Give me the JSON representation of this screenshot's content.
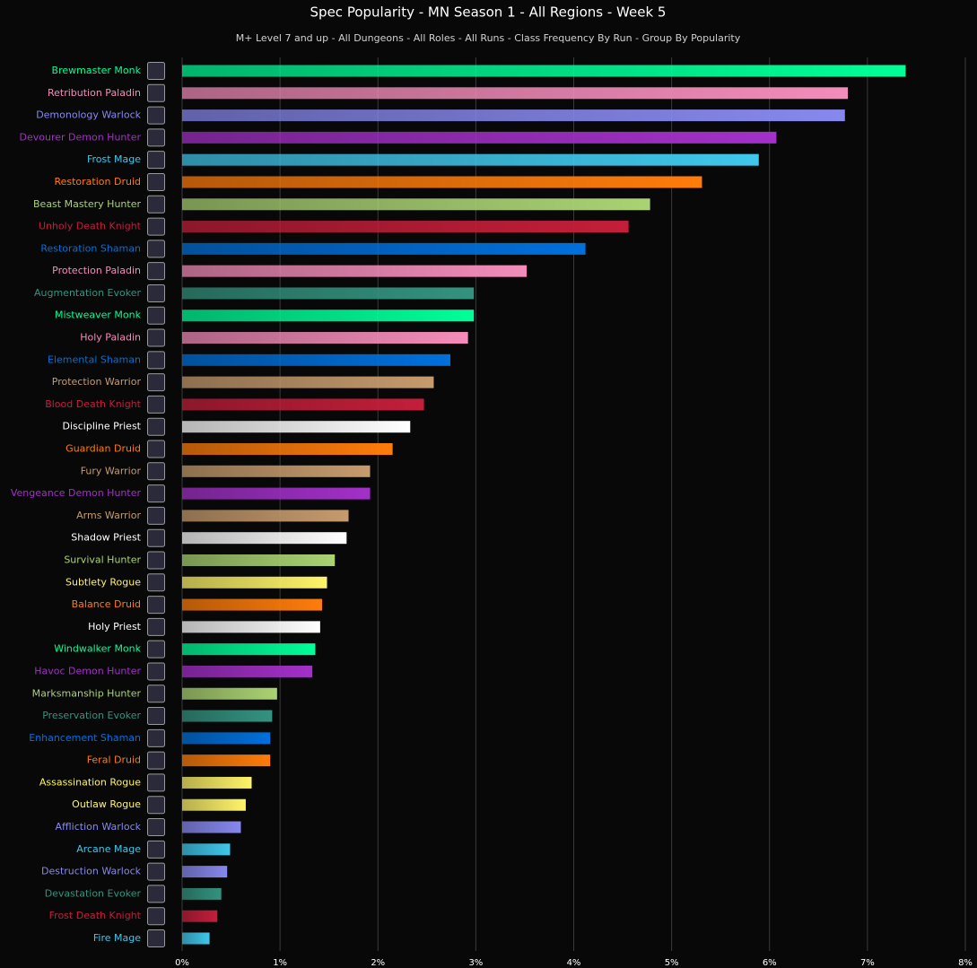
{
  "chart_data": {
    "type": "hbar",
    "title": "Spec Popularity - MN Season 1 - All Regions - Week 5",
    "subtitle": "M+ Level 7 and up - All Dungeons - All Roles - All Runs - Class Frequency By Run - Group By Popularity",
    "categories": [
      "Brewmaster Monk",
      "Retribution Paladin",
      "Demonology Warlock",
      "Devourer Demon Hunter",
      "Frost Mage",
      "Restoration Druid",
      "Beast Mastery Hunter",
      "Unholy Death Knight",
      "Restoration Shaman",
      "Protection Paladin",
      "Augmentation Evoker",
      "Mistweaver Monk",
      "Holy Paladin",
      "Elemental Shaman",
      "Protection Warrior",
      "Blood Death Knight",
      "Discipline Priest",
      "Guardian Druid",
      "Fury Warrior",
      "Vengeance Demon Hunter",
      "Arms Warrior",
      "Shadow Priest",
      "Survival Hunter",
      "Subtlety Rogue",
      "Balance Druid",
      "Holy Priest",
      "Windwalker Monk",
      "Havoc Demon Hunter",
      "Marksmanship Hunter",
      "Preservation Evoker",
      "Enhancement Shaman",
      "Feral Druid",
      "Assassination Rogue",
      "Outlaw Rogue",
      "Affliction Warlock",
      "Arcane Mage",
      "Destruction Warlock",
      "Devastation Evoker",
      "Frost Death Knight",
      "Fire Mage"
    ],
    "values": [
      7.39,
      6.8,
      6.77,
      6.07,
      5.89,
      5.31,
      4.78,
      4.56,
      4.12,
      3.52,
      2.98,
      2.98,
      2.92,
      2.74,
      2.57,
      2.47,
      2.33,
      2.15,
      1.92,
      1.92,
      1.7,
      1.68,
      1.56,
      1.48,
      1.43,
      1.41,
      1.36,
      1.33,
      0.97,
      0.92,
      0.9,
      0.9,
      0.71,
      0.65,
      0.6,
      0.49,
      0.46,
      0.4,
      0.36,
      0.28
    ],
    "colors": [
      "#00ff98",
      "#f48cba",
      "#8788ee",
      "#a330c9",
      "#3fc7eb",
      "#ff7c0a",
      "#aad372",
      "#c41e3a",
      "#0070dd",
      "#f48cba",
      "#33937f",
      "#00ff98",
      "#f48cba",
      "#0070dd",
      "#c69b6d",
      "#c41e3a",
      "#ffffff",
      "#ff7c0a",
      "#c69b6d",
      "#a330c9",
      "#c69b6d",
      "#ffffff",
      "#aad372",
      "#fff468",
      "#ff7c0a",
      "#ffffff",
      "#00ff98",
      "#a330c9",
      "#aad372",
      "#33937f",
      "#0070dd",
      "#ff7c0a",
      "#fff468",
      "#fff468",
      "#8788ee",
      "#3fc7eb",
      "#8788ee",
      "#33937f",
      "#c41e3a",
      "#3fc7eb"
    ],
    "xlim": [
      0,
      8
    ],
    "xticks": [
      {
        "value": 0,
        "label": "0%"
      },
      {
        "value": 1,
        "label": "1%"
      },
      {
        "value": 2,
        "label": "2%"
      },
      {
        "value": 3,
        "label": "3%"
      },
      {
        "value": 4,
        "label": "4%"
      },
      {
        "value": 5,
        "label": "5%"
      },
      {
        "value": 6,
        "label": "6%"
      },
      {
        "value": 7,
        "label": "7%"
      },
      {
        "value": 8,
        "label": "8%"
      }
    ],
    "grid": true
  }
}
